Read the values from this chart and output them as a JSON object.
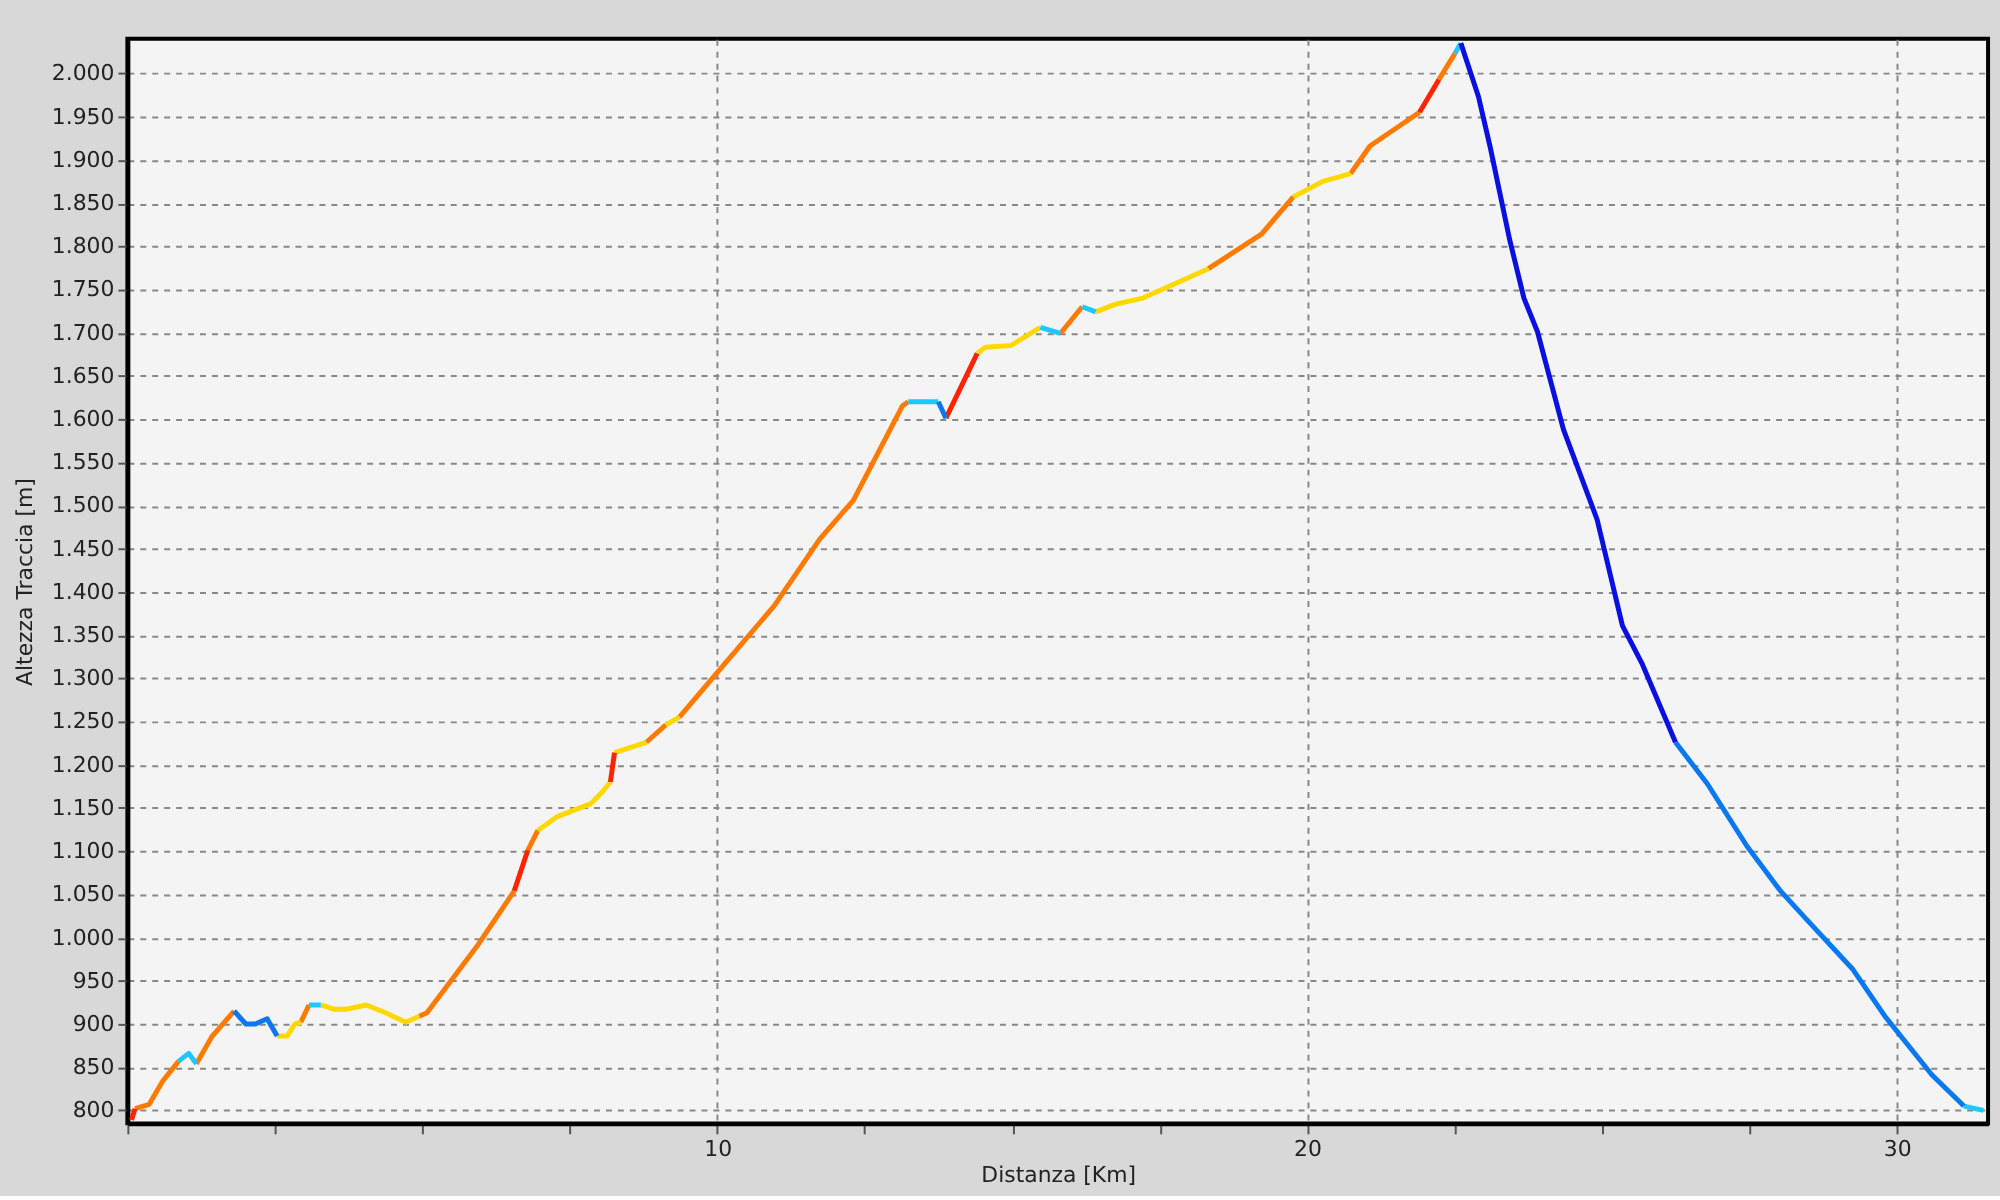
{
  "chart_data": {
    "type": "line",
    "xlabel": "Distanza [Km]",
    "ylabel": "Altezza Traccia [m]",
    "xlim": [
      0,
      31.55
    ],
    "ylim": [
      785,
      2040
    ],
    "xticks": [
      {
        "value": 0,
        "label": null
      },
      {
        "value": 2.5,
        "label": null
      },
      {
        "value": 5,
        "label": null
      },
      {
        "value": 7.5,
        "label": null
      },
      10,
      {
        "value": 12.5,
        "label": null
      },
      {
        "value": 15,
        "label": null
      },
      {
        "value": 17.5,
        "label": null
      },
      20,
      {
        "value": 22.5,
        "label": null
      },
      {
        "value": 25,
        "label": null
      },
      {
        "value": 27.5,
        "label": null
      },
      30
    ],
    "yticks": [
      800,
      850,
      900,
      950,
      {
        "value": 1000,
        "label": "1.000"
      },
      {
        "value": 1050,
        "label": "1.050"
      },
      {
        "value": 1100,
        "label": "1.100"
      },
      {
        "value": 1150,
        "label": "1.150"
      },
      {
        "value": 1200,
        "label": "1.200"
      },
      {
        "value": 1250,
        "label": "1.250"
      },
      {
        "value": 1300,
        "label": "1.300"
      },
      {
        "value": 1350,
        "label": "1.350"
      },
      {
        "value": 1400,
        "label": "1.400"
      },
      {
        "value": 1450,
        "label": "1.450"
      },
      {
        "value": 1500,
        "label": "1.500"
      },
      {
        "value": 1550,
        "label": "1.550"
      },
      {
        "value": 1600,
        "label": "1.600"
      },
      {
        "value": 1650,
        "label": "1.650"
      },
      {
        "value": 1700,
        "label": "1.700"
      },
      {
        "value": 1750,
        "label": "1.750"
      },
      {
        "value": 1800,
        "label": "1.800"
      },
      {
        "value": 1850,
        "label": "1.850"
      },
      {
        "value": 1900,
        "label": "1.900"
      },
      {
        "value": 1950,
        "label": "1.950"
      },
      {
        "value": 2000,
        "label": "2.000"
      }
    ],
    "grid": true,
    "marker": "none",
    "series": [
      {
        "color": "#ff7a00",
        "x": [
          0.13,
          0.37,
          0.6,
          0.87,
          1.0,
          1.17,
          1.44,
          1.81,
          2.4,
          2.94,
          3.08,
          4.0,
          4.95,
          5.08,
          5.95,
          6.56,
          6.7,
          6.79,
          6.96,
          7.4,
          8.8,
          9.13,
          9.25,
          9.36,
          10.03,
          10.97,
          11.74,
          12.31,
          13.14,
          13.24,
          14.5,
          15.82,
          16.19,
          17,
          18.33,
          19.23,
          19.77,
          20.2,
          20.74,
          21.07,
          21.91,
          22.1,
          22.24,
          22.51
        ],
        "values": [
          802,
          807,
          834,
          857,
          null,
          854,
          886,
          915,
          null,
          902,
          922,
          null,
          909,
          913,
          992,
          1054,
          null,
          1101,
          1124,
          null,
          1226,
          1246,
          null,
          1255,
          1309,
          1384,
          1461,
          1506,
          1615,
          1620,
          null,
          1699,
          1730,
          null,
          1774,
          1814,
          1857,
          null,
          1884,
          1916,
          1955,
          null,
          1993,
          2023
        ]
      },
      {
        "color": "#ffd800",
        "x": [
          2.54,
          2.71,
          2.84,
          2.94,
          3.2,
          3.28,
          3.51,
          3.71,
          4.05,
          4.38,
          4.72,
          4.95,
          6,
          6.96,
          7.29,
          7.86,
          8.06,
          8.19,
          8.22,
          8.26,
          8.39,
          8.8,
          9.0,
          9.13,
          9.36,
          11,
          14.41,
          14.55,
          14.98,
          15.48,
          16,
          16.42,
          16.76,
          17.22,
          18.33,
          19,
          19.77,
          20.27,
          20.74
        ],
        "values": [
          886,
          886,
          900,
          902,
          null,
          922,
          917,
          917,
          922,
          913,
          902,
          909,
          null,
          1124,
          1140,
          1155,
          1169,
          1180,
          null,
          1214,
          1217,
          1226,
          null,
          1246,
          1255,
          null,
          1676,
          1683,
          1685,
          1706,
          null,
          1724,
          1733,
          1740,
          1774,
          null,
          1857,
          1875,
          1884
        ]
      },
      {
        "color": "#ff2400",
        "x": [
          0.07,
          0.13,
          3,
          6.56,
          6.79,
          7.5,
          8.19,
          8.26,
          11,
          13.88,
          14.41,
          18,
          21.91,
          22.24
        ],
        "values": [
          789,
          802,
          null,
          1054,
          1101,
          null,
          1180,
          1214,
          null,
          1601,
          1676,
          null,
          1955,
          1993
        ]
      },
      {
        "color": "#1ec8ff",
        "x": [
          0.87,
          1.04,
          1.17,
          2,
          3.08,
          3.28,
          3.6,
          13.24,
          13.75,
          14.5,
          15.48,
          15.82,
          16,
          16.19,
          16.42,
          19,
          22.51,
          22.61,
          27,
          31.14,
          31.47
        ],
        "values": [
          857,
          866,
          854,
          null,
          922,
          922,
          null,
          1620,
          1620,
          null,
          1706,
          1699,
          null,
          1730,
          1724,
          null,
          2023,
          2035,
          null,
          805,
          800
        ]
      },
      {
        "color": "#0a78f0",
        "x": [
          1.81,
          2.01,
          2.17,
          2.37,
          2.54,
          8,
          13.75,
          13.88,
          20,
          26.25,
          26.79,
          27.46,
          28.03,
          28.46,
          29.26,
          29.8,
          30.6,
          31.14
        ],
        "values": [
          915,
          900,
          900,
          906,
          886,
          null,
          1620,
          1601,
          null,
          1226,
          1178,
          1106,
          1054,
          1022,
          963,
          909,
          841,
          805
        ]
      },
      {
        "color": "#0a10e0",
        "x": [
          22.61,
          22.91,
          23.11,
          23.44,
          23.68,
          23.91,
          24.35,
          24.92,
          25.35,
          25.69,
          26.25
        ],
        "values": [
          2035,
          1973,
          1914,
          1807,
          1740,
          1701,
          1588,
          1484,
          1361,
          1316,
          1226
        ]
      }
    ]
  }
}
